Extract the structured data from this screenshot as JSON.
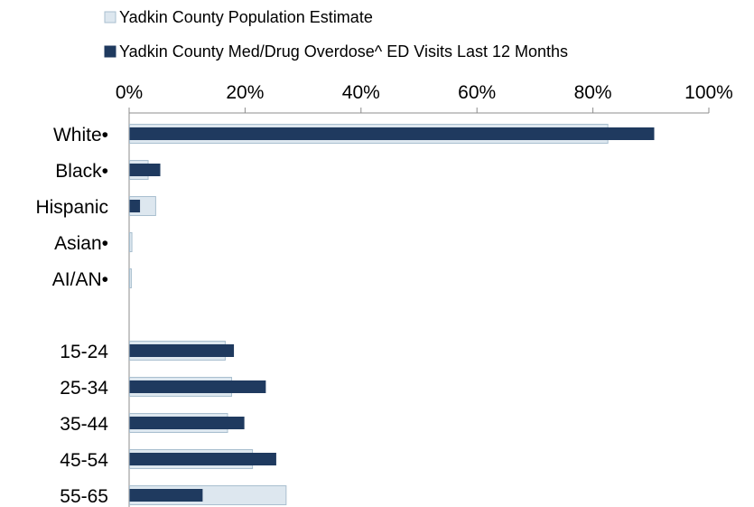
{
  "chart_data": {
    "type": "bar",
    "orientation": "horizontal",
    "title": "",
    "xlabel": "",
    "ylabel": "",
    "xlim": [
      0,
      100
    ],
    "x_ticks": [
      0,
      20,
      40,
      60,
      80,
      100
    ],
    "x_tick_labels": [
      "0%",
      "20%",
      "40%",
      "60%",
      "80%",
      "100%"
    ],
    "x_axis_position": "top",
    "grid": false,
    "legend_position": "top-left",
    "categories": [
      "White•",
      "Black•",
      "Hispanic",
      "Asian•",
      "AI/AN•",
      "",
      "15-24",
      "25-34",
      "35-44",
      "45-54",
      "55-65"
    ],
    "series": [
      {
        "name": "Yadkin County Population Estimate",
        "color": "#dde7ef",
        "border_color": "#a9bfcf",
        "values": [
          82.5,
          3.2,
          4.5,
          0.4,
          0.3,
          null,
          16.5,
          17.6,
          16.9,
          21.2,
          27.0
        ]
      },
      {
        "name": "Yadkin County Med/Drug Overdose^ ED Visits Last 12 Months",
        "color": "#1f3a5f",
        "border_color": "#1f3a5f",
        "values": [
          90.5,
          5.3,
          1.8,
          0,
          0,
          null,
          18.0,
          23.5,
          19.8,
          25.3,
          12.6
        ]
      }
    ]
  }
}
